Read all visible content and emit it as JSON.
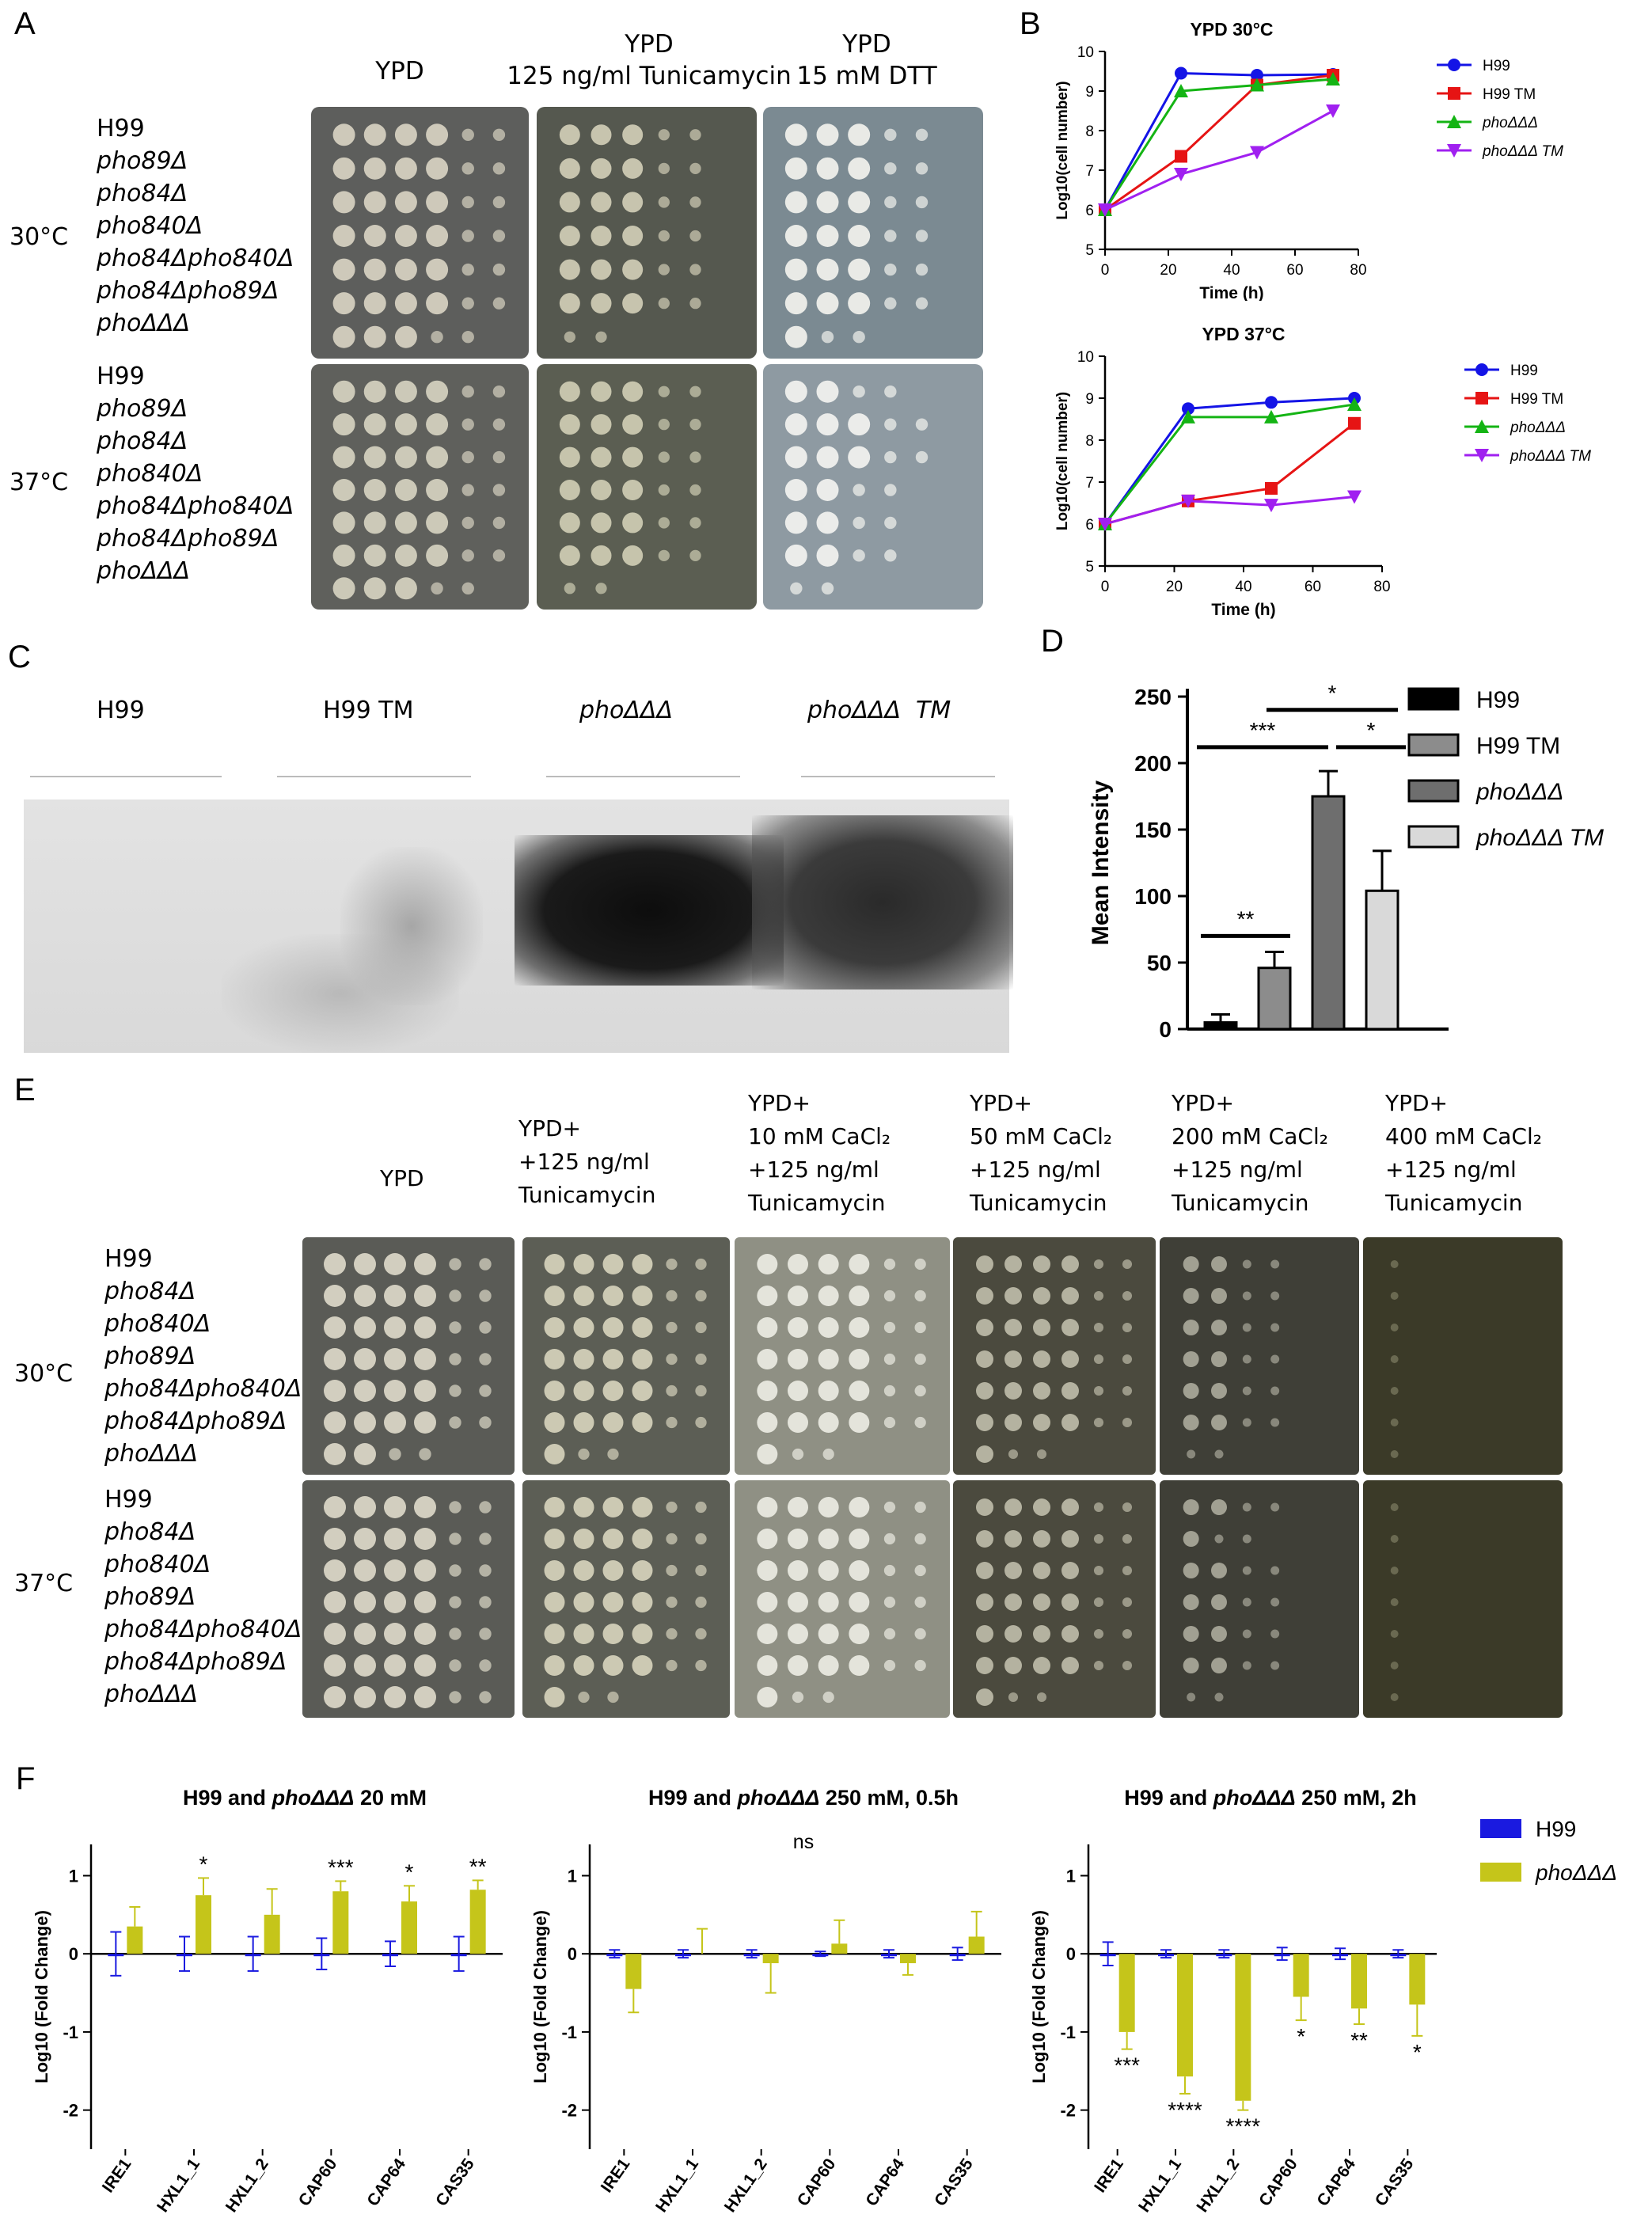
{
  "panel_labels": {
    "a": "A",
    "b": "B",
    "c": "C",
    "d": "D",
    "e": "E",
    "f": "F"
  },
  "panelA": {
    "conditions": [
      {
        "line1": "YPD",
        "line2": ""
      },
      {
        "line1": "YPD",
        "line2": "125 ng/ml Tunicamycin"
      },
      {
        "line1": "YPD",
        "line2": "15 mM DTT"
      }
    ],
    "temp_30": "30°C",
    "temp_37": "37°C",
    "strains_30": [
      "H99",
      "pho89Δ",
      "pho84Δ",
      "pho840Δ",
      "pho84Δpho840Δ",
      "pho84Δpho89Δ",
      "phoΔΔΔ"
    ],
    "strains_37": [
      "H99",
      "pho89Δ",
      "pho84Δ",
      "pho840Δ",
      "pho84Δpho840Δ",
      "pho84Δpho89Δ",
      "phoΔΔΔ"
    ]
  },
  "panelC": {
    "lanes": [
      "H99",
      "H99 TM",
      "phoΔΔΔ",
      "phoΔΔΔ  TM"
    ]
  },
  "panelE": {
    "conditions": [
      [
        "YPD"
      ],
      [
        "YPD+",
        "+125 ng/ml",
        "Tunicamycin"
      ],
      [
        "YPD+",
        "10 mM CaCl₂",
        "+125 ng/ml",
        "Tunicamycin"
      ],
      [
        "YPD+",
        "50 mM CaCl₂",
        "+125 ng/ml",
        "Tunicamycin"
      ],
      [
        "YPD+",
        "200 mM CaCl₂",
        "+125 ng/ml",
        "Tunicamycin"
      ],
      [
        "YPD+",
        "400 mM CaCl₂",
        "+125 ng/ml",
        "Tunicamycin"
      ]
    ],
    "temp_30": "30°C",
    "temp_37": "37°C",
    "strains_30": [
      "H99",
      "pho84Δ",
      "pho840Δ",
      "pho89Δ",
      "pho84Δpho840Δ",
      "pho84Δpho89Δ",
      "phoΔΔΔ"
    ],
    "strains_37": [
      "H99",
      "pho84Δ",
      "pho840Δ",
      "pho89Δ",
      "pho84Δpho840Δ",
      "pho84Δpho89Δ",
      "phoΔΔΔ"
    ]
  },
  "chart_data": [
    {
      "id": "B1",
      "type": "line",
      "title": "YPD 30°C",
      "xlabel": "Time (h)",
      "ylabel": "Log10(cell number)",
      "xlim": [
        0,
        80
      ],
      "ylim": [
        5,
        10
      ],
      "xticks": [
        0,
        20,
        40,
        60,
        80
      ],
      "yticks": [
        5,
        6,
        7,
        8,
        9,
        10
      ],
      "legend_position": "right",
      "series": [
        {
          "name": "H99",
          "color": "#1414e6",
          "marker": "circle",
          "x": [
            0,
            24,
            48,
            72
          ],
          "y": [
            6.0,
            9.45,
            9.4,
            9.42
          ]
        },
        {
          "name": "H99 TM",
          "color": "#e61414",
          "marker": "square",
          "x": [
            0,
            24,
            48,
            72
          ],
          "y": [
            6.0,
            7.35,
            9.15,
            9.4
          ]
        },
        {
          "name": "phoΔΔΔ",
          "color": "#14b414",
          "marker": "triangle-up",
          "x": [
            0,
            24,
            48,
            72
          ],
          "y": [
            6.0,
            9.0,
            9.15,
            9.3
          ]
        },
        {
          "name": "phoΔΔΔ TM",
          "color": "#a020f0",
          "marker": "triangle-down",
          "x": [
            0,
            24,
            48,
            72
          ],
          "y": [
            6.0,
            6.9,
            7.45,
            8.5
          ]
        }
      ]
    },
    {
      "id": "B2",
      "type": "line",
      "title": "YPD 37°C",
      "xlabel": "Time (h)",
      "ylabel": "Log10(cell number)",
      "xlim": [
        0,
        80
      ],
      "ylim": [
        5,
        10
      ],
      "xticks": [
        0,
        20,
        40,
        60,
        80
      ],
      "yticks": [
        5,
        6,
        7,
        8,
        9,
        10
      ],
      "legend_position": "right",
      "series": [
        {
          "name": "H99",
          "color": "#1414e6",
          "marker": "circle",
          "x": [
            0,
            24,
            48,
            72
          ],
          "y": [
            6.0,
            8.75,
            8.9,
            9.0
          ]
        },
        {
          "name": "H99 TM",
          "color": "#e61414",
          "marker": "square",
          "x": [
            0,
            24,
            48,
            72
          ],
          "y": [
            6.0,
            6.55,
            6.85,
            8.4
          ]
        },
        {
          "name": "phoΔΔΔ",
          "color": "#14b414",
          "marker": "triangle-up",
          "x": [
            0,
            24,
            48,
            72
          ],
          "y": [
            6.0,
            8.55,
            8.55,
            8.85
          ]
        },
        {
          "name": "phoΔΔΔ TM",
          "color": "#a020f0",
          "marker": "triangle-down",
          "x": [
            0,
            24,
            48,
            72
          ],
          "y": [
            6.0,
            6.55,
            6.45,
            6.65
          ]
        }
      ]
    },
    {
      "id": "D",
      "type": "bar",
      "ylabel": "Mean Intensity",
      "ylim": [
        0,
        250
      ],
      "yticks": [
        0,
        50,
        100,
        150,
        200,
        250
      ],
      "categories": [
        "H99",
        "H99 TM",
        "phoΔΔΔ",
        "phoΔΔΔ TM"
      ],
      "values": [
        5,
        46,
        175,
        104
      ],
      "errors": [
        6,
        12,
        19,
        30
      ],
      "colors": [
        "#000000",
        "#8c8c8c",
        "#6e6e6e",
        "#d9d9d9"
      ],
      "significance": [
        {
          "from": 0,
          "to": 1,
          "label": "**"
        },
        {
          "from": 0,
          "to": 2,
          "label": "***"
        },
        {
          "from": 1,
          "to": 3,
          "label": "*"
        },
        {
          "from": 2,
          "to": 3,
          "label": "*"
        }
      ],
      "legend_position": "right"
    },
    {
      "id": "F1",
      "type": "bar",
      "title_plain": "H99 and ",
      "title_italic": "phoΔΔΔ",
      "title_rest": " 20 mM",
      "ylabel": "Log10 (Fold Change)",
      "ylim": [
        -2.5,
        1.4
      ],
      "yticks": [
        -2,
        -1,
        0,
        1
      ],
      "categories": [
        "IRE1",
        "HXL1_1",
        "HXL1_2",
        "CAP60",
        "CAP64",
        "CAS35"
      ],
      "series": [
        {
          "name": "H99",
          "color": "#1a1ae0",
          "values": [
            0,
            0,
            0,
            0,
            0,
            0
          ],
          "errors": [
            0.28,
            0.22,
            0.22,
            0.2,
            0.16,
            0.22
          ]
        },
        {
          "name": "phoΔΔΔ",
          "color": "#c5c51a",
          "values": [
            0.35,
            0.75,
            0.5,
            0.8,
            0.67,
            0.82
          ],
          "errors": [
            0.25,
            0.22,
            0.33,
            0.13,
            0.2,
            0.12
          ]
        }
      ],
      "significance": [
        "",
        "*",
        "",
        "***",
        "*",
        "**"
      ]
    },
    {
      "id": "F2",
      "type": "bar",
      "title_plain": "H99 and ",
      "title_italic": "phoΔΔΔ",
      "title_rest": " 250 mM, 0.5h",
      "ylabel": "Log10 (Fold Change)",
      "ylim": [
        -2.5,
        1.4
      ],
      "yticks": [
        -2,
        -1,
        0,
        1
      ],
      "categories": [
        "IRE1",
        "HXL1_1",
        "HXL1_2",
        "CAP60",
        "CAP64",
        "CAS35"
      ],
      "series": [
        {
          "name": "H99",
          "color": "#1a1ae0",
          "values": [
            0,
            0,
            0,
            0,
            0,
            0
          ],
          "errors": [
            0.05,
            0.05,
            0.05,
            0.03,
            0.05,
            0.08
          ]
        },
        {
          "name": "phoΔΔΔ",
          "color": "#c5c51a",
          "values": [
            -0.45,
            0,
            -0.12,
            0.13,
            -0.12,
            0.22
          ],
          "errors": [
            0.3,
            0.32,
            0.38,
            0.3,
            0.15,
            0.32
          ]
        }
      ],
      "annotation": "ns"
    },
    {
      "id": "F3",
      "type": "bar",
      "title_plain": "H99 and ",
      "title_italic": "phoΔΔΔ",
      "title_rest": " 250 mM, 2h",
      "ylabel": "Log10 (Fold Change)",
      "ylim": [
        -2.5,
        1.4
      ],
      "yticks": [
        -2,
        -1,
        0,
        1
      ],
      "categories": [
        "IRE1",
        "HXL1_1",
        "HXL1_2",
        "CAP60",
        "CAP64",
        "CAS35"
      ],
      "series": [
        {
          "name": "H99",
          "color": "#1a1ae0",
          "values": [
            0,
            0,
            0,
            0,
            0,
            0
          ],
          "errors": [
            0.15,
            0.05,
            0.05,
            0.08,
            0.07,
            0.05
          ]
        },
        {
          "name": "phoΔΔΔ",
          "color": "#c5c51a",
          "values": [
            -1.0,
            -1.57,
            -1.88,
            -0.55,
            -0.7,
            -0.65
          ],
          "errors": [
            0.22,
            0.22,
            0.12,
            0.3,
            0.2,
            0.4
          ]
        }
      ],
      "significance": [
        "***",
        "****",
        "****",
        "*",
        "**",
        "*"
      ],
      "legend": [
        "H99",
        "phoΔΔΔ"
      ]
    }
  ]
}
